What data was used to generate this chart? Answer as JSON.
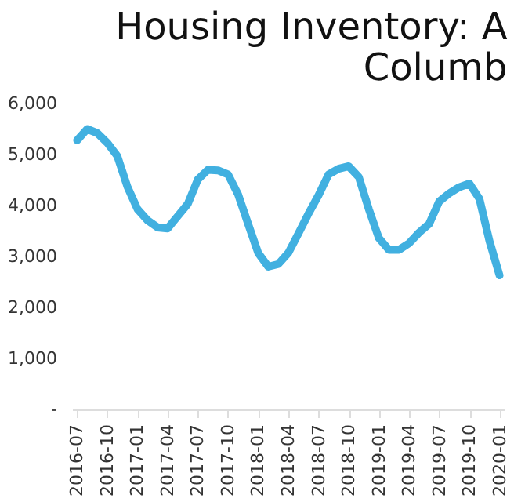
{
  "chart_data": {
    "type": "line",
    "title": [
      "Housing Inventory: A",
      "Columb"
    ],
    "categories": [
      "2016-07",
      null,
      null,
      "2016-10",
      null,
      null,
      "2017-01",
      null,
      null,
      "2017-04",
      null,
      null,
      "2017-07",
      null,
      null,
      "2017-10",
      null,
      null,
      "2018-01",
      null,
      null,
      "2018-04",
      null,
      null,
      "2018-07",
      null,
      null,
      "2018-10",
      null,
      null,
      "2019-01",
      null,
      null,
      "2019-04",
      null,
      null,
      "2019-07",
      null,
      null,
      "2019-10",
      null,
      null,
      "2020-01"
    ],
    "series": [
      {
        "color": "#41b0e0",
        "values": [
          5280,
          5500,
          5420,
          5230,
          4970,
          4370,
          3930,
          3710,
          3570,
          3550,
          3790,
          4030,
          4510,
          4700,
          4690,
          4610,
          4220,
          3640,
          3070,
          2800,
          2850,
          3070,
          3450,
          3840,
          4200,
          4610,
          4720,
          4770,
          4560,
          3930,
          3360,
          3130,
          3130,
          3260,
          3470,
          3640,
          4080,
          4240,
          4360,
          4430,
          4130,
          3300,
          2630
        ]
      }
    ],
    "ylim": [
      0,
      6000
    ],
    "yticks": [
      {
        "value": 0,
        "label": "-"
      },
      {
        "value": 1000,
        "label": "1,000"
      },
      {
        "value": 2000,
        "label": "2,000"
      },
      {
        "value": 3000,
        "label": "3,000"
      },
      {
        "value": 4000,
        "label": "4,000"
      },
      {
        "value": 5000,
        "label": "5,000"
      },
      {
        "value": 6000,
        "label": "6,000"
      }
    ],
    "grid": false,
    "marker": "none",
    "line_style": "solid"
  }
}
